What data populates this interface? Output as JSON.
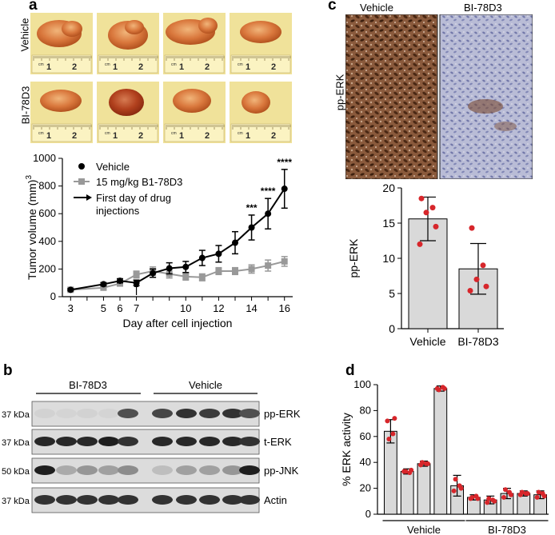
{
  "panels": {
    "a": "a",
    "b": "b",
    "c": "c",
    "d": "d"
  },
  "panel_a": {
    "row_labels": [
      "Vehicle",
      "BI-78D3"
    ],
    "ruler_text": {
      "cm": "cm",
      "one": "1",
      "two": "2"
    },
    "chart_data": {
      "type": "line",
      "xlabel": "Day after cell injection",
      "ylabel": "Tumor volume (mm)",
      "ylabel_sup": "3",
      "xlim": [
        2.5,
        16.5
      ],
      "ylim": [
        0,
        1000
      ],
      "xticks": [
        3,
        4,
        5,
        6,
        7,
        8,
        9,
        10,
        11,
        12,
        13,
        14,
        15,
        16
      ],
      "xticklabels": [
        "3",
        "5",
        "6",
        "7",
        "10",
        "12",
        "14",
        "16"
      ],
      "xticklabel_positions": [
        3,
        5,
        6,
        7,
        10,
        12,
        14,
        16
      ],
      "yticks": [
        0,
        200,
        400,
        600,
        800,
        1000
      ],
      "series": [
        {
          "name": "Vehicle",
          "color": "#000000",
          "x": [
            3,
            5,
            6,
            7,
            8,
            9,
            10,
            11,
            12,
            13,
            14,
            15,
            16
          ],
          "values": [
            50,
            90,
            115,
            100,
            170,
            205,
            215,
            280,
            310,
            390,
            500,
            600,
            780
          ],
          "err": [
            8,
            12,
            15,
            20,
            30,
            40,
            40,
            55,
            60,
            80,
            90,
            110,
            140
          ]
        },
        {
          "name": "15 mg/kg B1-78D3",
          "color": "#999999",
          "x": [
            3,
            5,
            6,
            7,
            8,
            9,
            10,
            11,
            12,
            13,
            14,
            15,
            16
          ],
          "values": [
            50,
            65,
            95,
            160,
            185,
            165,
            145,
            140,
            185,
            185,
            200,
            225,
            255
          ],
          "err": [
            6,
            10,
            12,
            25,
            30,
            30,
            25,
            25,
            25,
            25,
            30,
            40,
            35
          ]
        }
      ],
      "annotations": [
        {
          "x": 14,
          "text": "***"
        },
        {
          "x": 15,
          "text": "****"
        },
        {
          "x": 16,
          "text": "****"
        }
      ],
      "legend": {
        "vehicle": "Vehicle",
        "drug": "15 mg/kg B1-78D3",
        "arrow_line1": "First day of drug",
        "arrow_line2": "injections"
      },
      "arrow_day": 7
    }
  },
  "panel_b": {
    "group_labels": [
      "BI-78D3",
      "Vehicle"
    ],
    "rows": [
      {
        "kda": "37 kDa",
        "label": "pp-ERK"
      },
      {
        "kda": "37 kDa",
        "label": "t-ERK"
      },
      {
        "kda": "50 kDa",
        "label": "pp-JNK"
      },
      {
        "kda": "37 kDa",
        "label": "Actin"
      }
    ]
  },
  "panel_c": {
    "column_labels": [
      "Vehicle",
      "BI-78D3"
    ],
    "image_row_label": "pp-ERK",
    "chart_data": {
      "type": "bar",
      "categories": [
        "Vehicle",
        "BI-78D3"
      ],
      "values": [
        15.6,
        8.5
      ],
      "err": [
        3.1,
        3.6
      ],
      "points": [
        [
          18.5,
          17.2,
          16.5,
          14.5,
          12.0
        ],
        [
          14.3,
          9.0,
          7.0,
          6.0,
          5.4
        ]
      ],
      "ylabel": "pp-ERK",
      "ylim": [
        0,
        20
      ],
      "yticks": [
        0,
        5,
        10,
        15,
        20
      ]
    }
  },
  "panel_d": {
    "chart_data": {
      "type": "bar",
      "ylabel": "% ERK activity",
      "ylim": [
        0,
        100
      ],
      "yticks": [
        0,
        20,
        40,
        60,
        80,
        100
      ],
      "values": [
        64,
        33,
        39,
        97,
        22,
        13,
        11,
        16,
        16,
        15
      ],
      "err": [
        9,
        2,
        2,
        2,
        8,
        2,
        3,
        4,
        2,
        3
      ],
      "points": [
        [
          72,
          62,
          58,
          74
        ],
        [
          33,
          32,
          33,
          34
        ],
        [
          38,
          39,
          40,
          39
        ],
        [
          97,
          98,
          96,
          97
        ],
        [
          18,
          22,
          27,
          20
        ],
        [
          12,
          14,
          13,
          12
        ],
        [
          9,
          11,
          12,
          10
        ],
        [
          13,
          17,
          19,
          15
        ],
        [
          15,
          16,
          17,
          16
        ],
        [
          13,
          16,
          17,
          14
        ]
      ],
      "groups": [
        {
          "label": "Vehicle",
          "from": 0,
          "to": 4
        },
        {
          "label": "BI-78D3",
          "from": 5,
          "to": 9
        }
      ]
    }
  }
}
